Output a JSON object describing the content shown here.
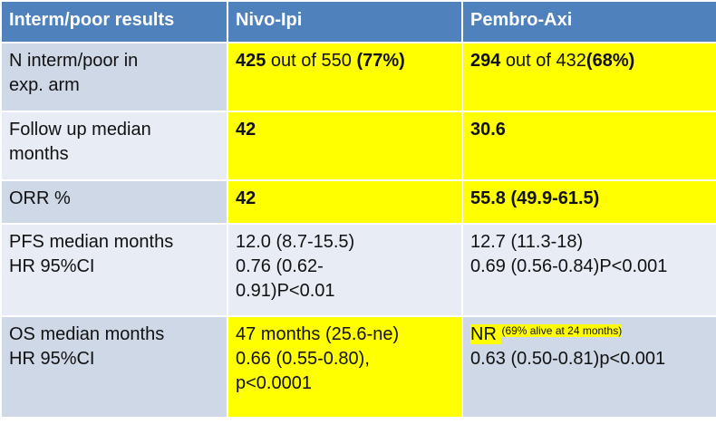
{
  "header": {
    "col1": "Interm/poor results",
    "col2": "Nivo-Ipi",
    "col3": "Pembro-Axi"
  },
  "rows": [
    {
      "label": [
        "N interm/poor in",
        "exp. arm"
      ],
      "nivo": {
        "bold_a": "425",
        "text": " out of 550 ",
        "bold_b": "(77%)"
      },
      "pembro": {
        "bold_a": "294",
        "text": " out of 432",
        "bold_b": "(68%)"
      }
    },
    {
      "label": [
        "Follow up median",
        "months"
      ],
      "nivo": "42",
      "pembro": "30.6"
    },
    {
      "label": [
        "ORR %"
      ],
      "nivo": "42",
      "pembro": "55.8 (49.9-61.5)"
    },
    {
      "label": [
        "PFS median months",
        "HR 95%CI"
      ],
      "nivo": [
        "12.0 (8.7-15.5)",
        "0.76 (0.62-",
        "0.91)P<0.01"
      ],
      "pembro": [
        "12.7 (11.3-18)",
        "0.69 (0.56-0.84)P<0.001"
      ]
    },
    {
      "label": [
        "OS median months",
        "HR 95%CI"
      ],
      "nivo": [
        "47 months (25.6-ne)",
        "0.66 (0.55-0.80),",
        "p<0.0001"
      ],
      "pembro": {
        "main": "NR ",
        "sup": "(69% alive at 24 months)",
        "line2": "0.63 (0.50-0.81)p<0.001"
      }
    }
  ],
  "colors": {
    "header_bg": "#4f81bd",
    "label_bg": "#cfd8e6",
    "label_bg_alt": "#e8edf5",
    "highlight": "#ffff00"
  }
}
